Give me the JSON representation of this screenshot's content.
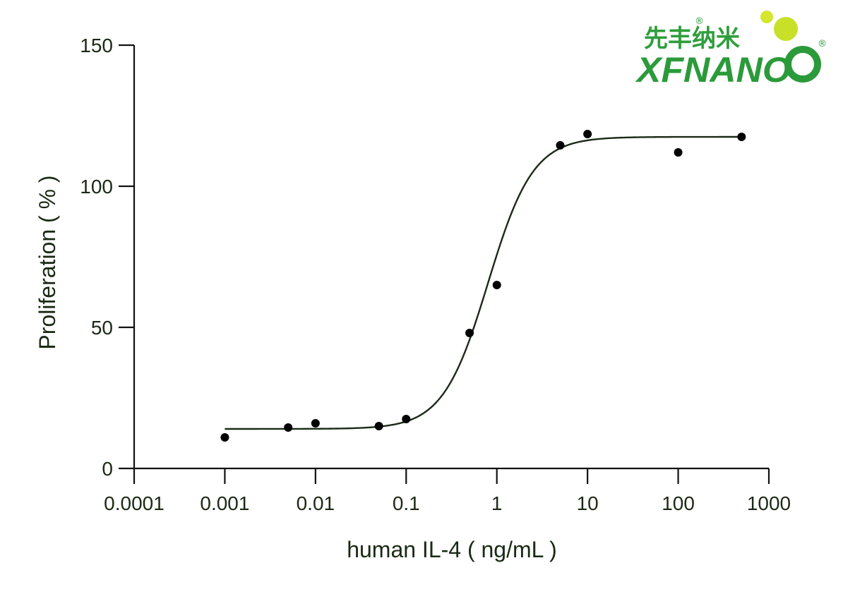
{
  "chart_data": {
    "type": "scatter",
    "x_scale": "log",
    "xlabel": "human IL-4 ( ng/mL )",
    "ylabel": "Proliferation ( % )",
    "xlim": [
      0.0001,
      1000
    ],
    "ylim": [
      0,
      150
    ],
    "x_ticks": [
      0.0001,
      0.001,
      0.01,
      0.1,
      1,
      10,
      100,
      1000
    ],
    "x_tick_labels": [
      "0.0001",
      "0.001",
      "0.01",
      "0.1",
      "1",
      "10",
      "100",
      "1000"
    ],
    "y_ticks": [
      0,
      50,
      100,
      150
    ],
    "y_tick_labels": [
      "0",
      "50",
      "100",
      "150"
    ],
    "grid": false,
    "series": [
      {
        "points": [
          {
            "x": 0.001,
            "y": 11
          },
          {
            "x": 0.005,
            "y": 14.5
          },
          {
            "x": 0.01,
            "y": 16
          },
          {
            "x": 0.05,
            "y": 15
          },
          {
            "x": 0.1,
            "y": 17.5
          },
          {
            "x": 0.5,
            "y": 48
          },
          {
            "x": 1,
            "y": 65
          },
          {
            "x": 5,
            "y": 114.5
          },
          {
            "x": 10,
            "y": 118.5
          },
          {
            "x": 100,
            "y": 112
          },
          {
            "x": 500,
            "y": 117.5
          }
        ],
        "fit": {
          "model": "four-parameter logistic",
          "bottom": 14,
          "top": 117.5,
          "ec50": 0.8,
          "hill": 1.75,
          "x_range": [
            0.001,
            500
          ]
        }
      }
    ]
  },
  "logo": {
    "chinese": "先丰纳米",
    "english": "XFNANO",
    "registered": "®",
    "colors": {
      "green": "#2b9a3a",
      "lime": "#c8e028",
      "light_green": "#7fd04a"
    }
  }
}
